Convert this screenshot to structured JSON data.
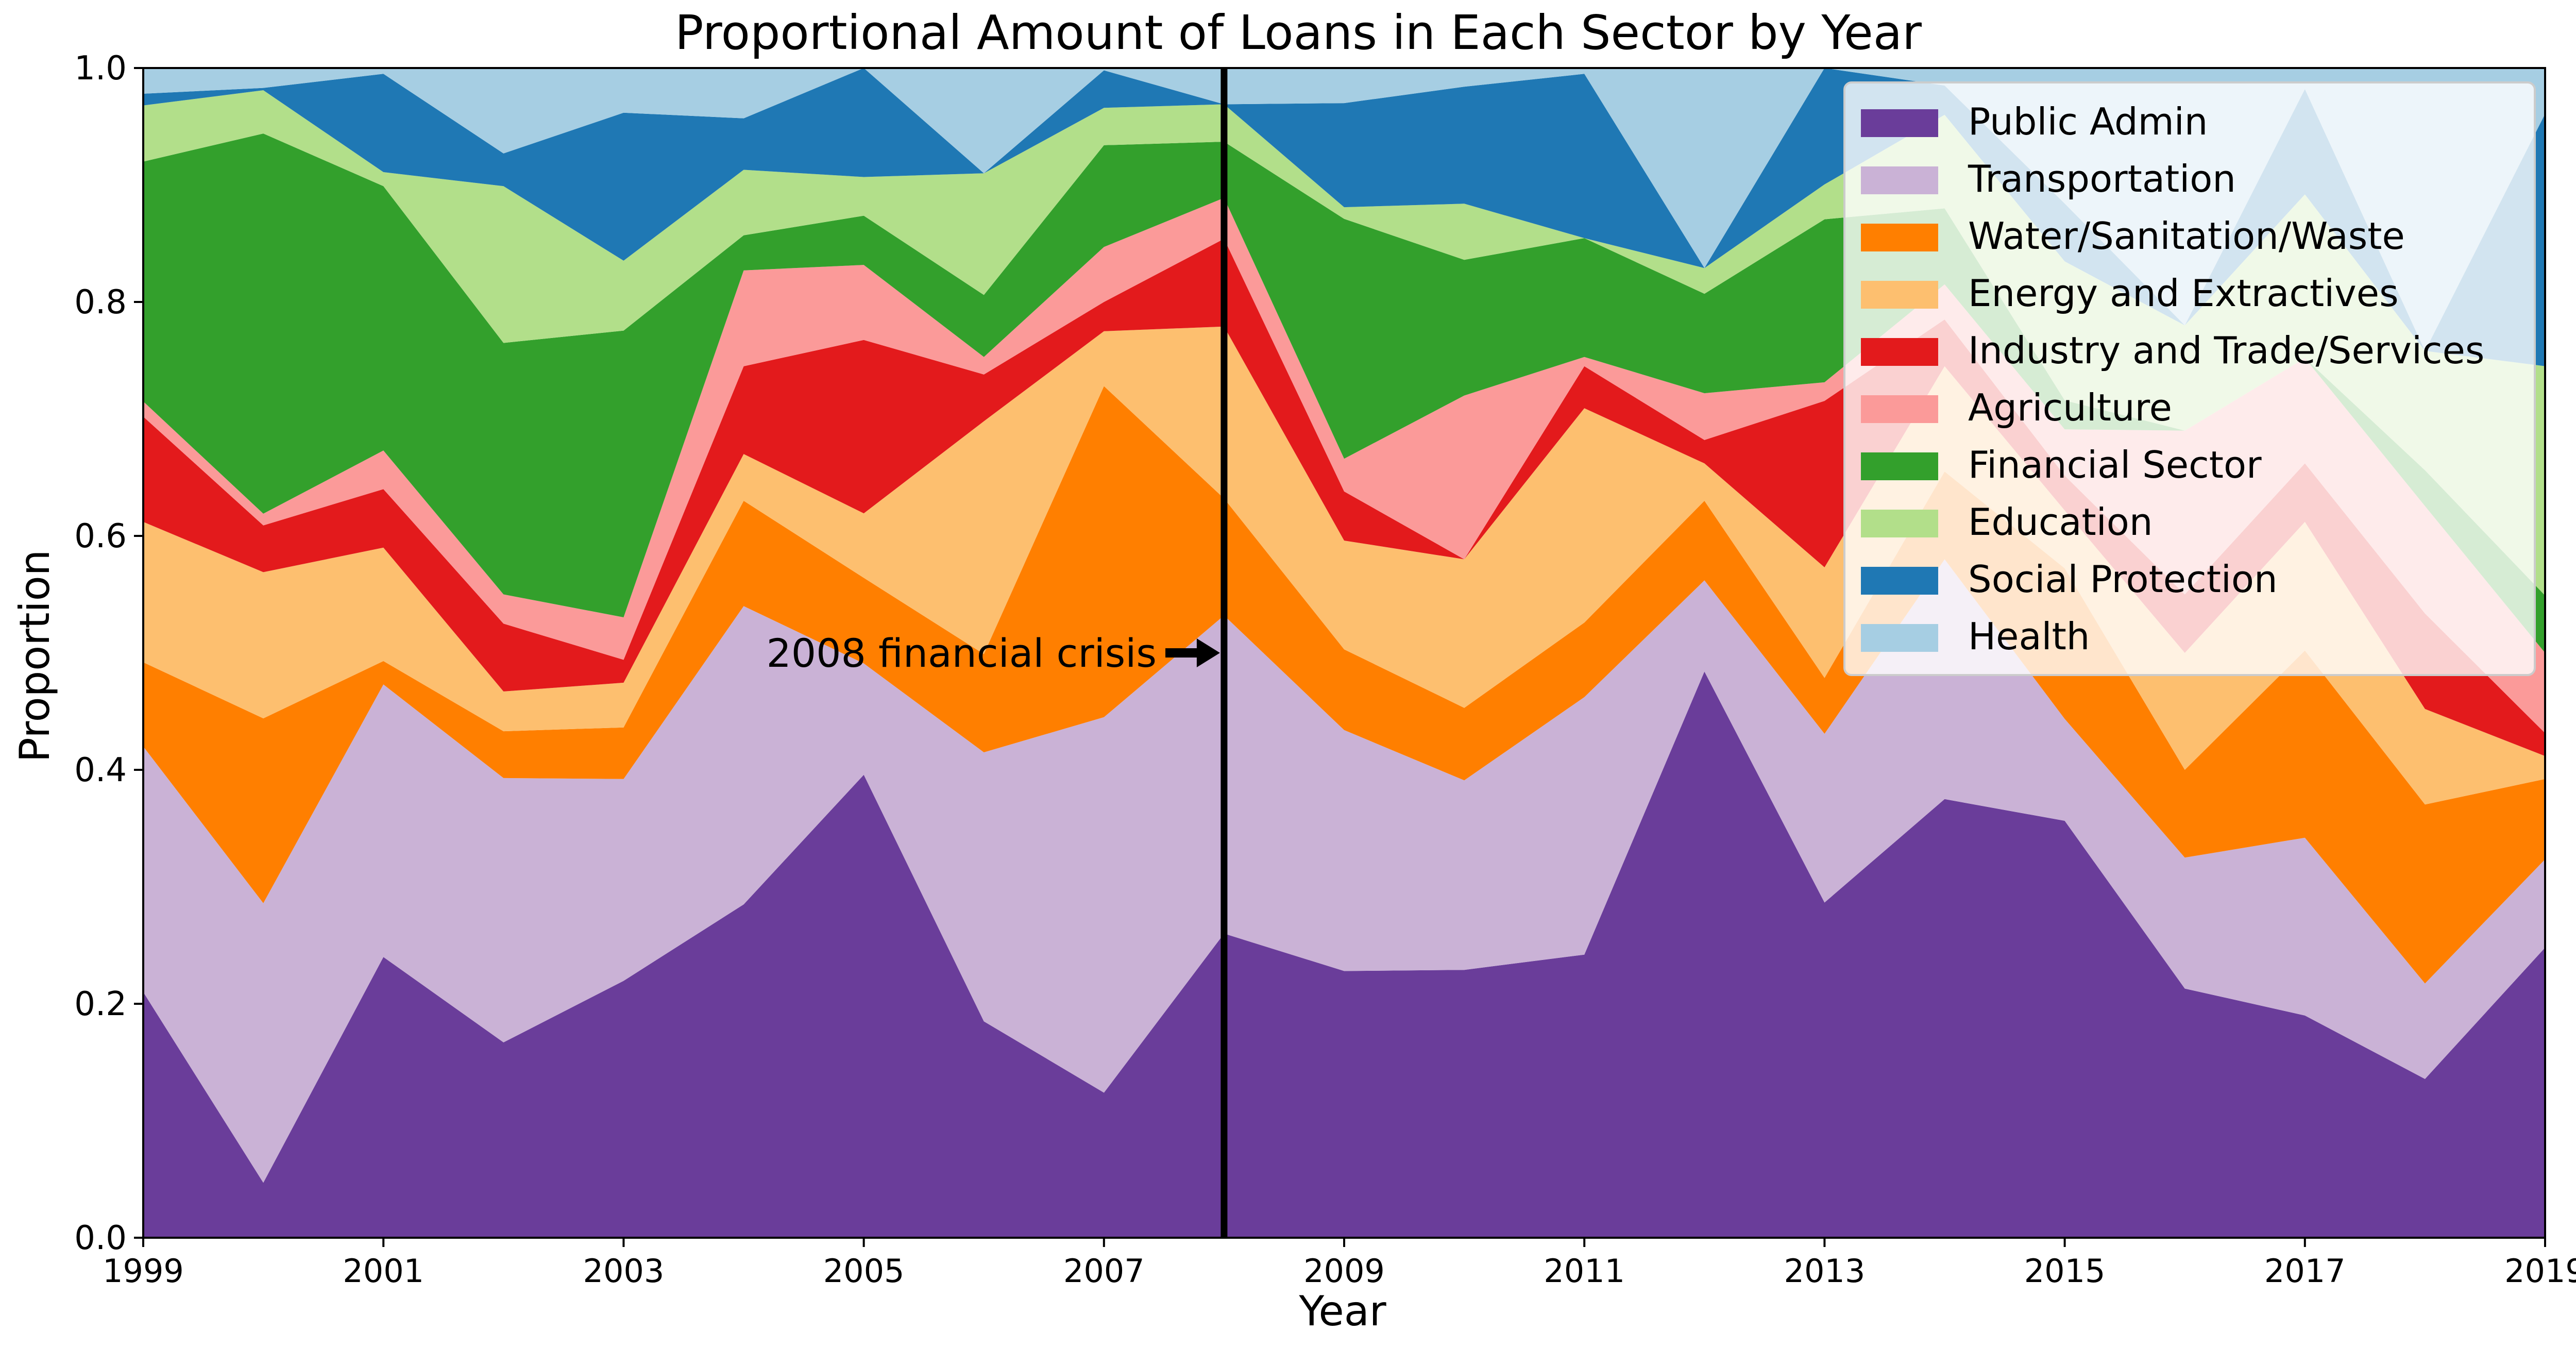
{
  "chart_data": {
    "type": "area",
    "stacked": true,
    "normalized": true,
    "title": "Proportional Amount of Loans in Each Sector by Year",
    "xlabel": "Year",
    "ylabel": "Proportion",
    "xlim": [
      1999,
      2019
    ],
    "ylim": [
      0,
      1
    ],
    "x": [
      1999,
      2000,
      2001,
      2002,
      2003,
      2004,
      2005,
      2006,
      2007,
      2008,
      2009,
      2010,
      2011,
      2012,
      2013,
      2014,
      2015,
      2016,
      2017,
      2018,
      2019
    ],
    "x_ticks": [
      "1999",
      "2001",
      "2003",
      "2005",
      "2007",
      "2009",
      "2011",
      "2013",
      "2015",
      "2017",
      "2019"
    ],
    "y_ticks": [
      "0.0",
      "0.2",
      "0.4",
      "0.6",
      "0.8",
      "1.0"
    ],
    "legend_position": "top-right",
    "grid": false,
    "series": [
      {
        "name": "Public Admin",
        "color": "#6a3d9a",
        "values": [
          0.21,
          0.047,
          0.24,
          0.167,
          0.224,
          0.285,
          0.395,
          0.185,
          0.124,
          0.26,
          0.228,
          0.229,
          0.243,
          0.484,
          0.288,
          0.375,
          0.36,
          0.213,
          0.19,
          0.133,
          0.253
        ]
      },
      {
        "name": "Transportation",
        "color": "#cab2d6",
        "values": [
          0.21,
          0.239,
          0.233,
          0.226,
          0.176,
          0.255,
          0.095,
          0.23,
          0.321,
          0.272,
          0.206,
          0.162,
          0.221,
          0.078,
          0.145,
          0.205,
          0.088,
          0.112,
          0.152,
          0.08,
          0.077
        ]
      },
      {
        "name": "Water/Sanitation/Waste",
        "color": "#ff7f00",
        "values": [
          0.072,
          0.158,
          0.02,
          0.04,
          0.045,
          0.09,
          0.073,
          0.084,
          0.283,
          0.1,
          0.069,
          0.062,
          0.064,
          0.068,
          0.048,
          0.075,
          0.13,
          0.075,
          0.16,
          0.15,
          0.07
        ]
      },
      {
        "name": "Energy and Extractives",
        "color": "#fdbf6f",
        "values": [
          0.12,
          0.125,
          0.097,
          0.034,
          0.039,
          0.04,
          0.055,
          0.199,
          0.047,
          0.147,
          0.093,
          0.127,
          0.184,
          0.032,
          0.095,
          0.09,
          0.05,
          0.1,
          0.11,
          0.08,
          0.02
        ]
      },
      {
        "name": "Industry and Trade/Services",
        "color": "#e31a1c",
        "values": [
          0.09,
          0.04,
          0.05,
          0.058,
          0.02,
          0.075,
          0.148,
          0.04,
          0.025,
          0.075,
          0.042,
          0.0,
          0.036,
          0.02,
          0.143,
          0.04,
          0.03,
          0.05,
          0.05,
          0.08,
          0.02
        ]
      },
      {
        "name": "Agriculture",
        "color": "#fb9a99",
        "values": [
          0.013,
          0.01,
          0.033,
          0.025,
          0.037,
          0.082,
          0.064,
          0.015,
          0.047,
          0.035,
          0.028,
          0.14,
          0.008,
          0.04,
          0.016,
          0.03,
          0.04,
          0.14,
          0.09,
          0.09,
          0.07
        ]
      },
      {
        "name": "Financial Sector",
        "color": "#33a02c",
        "values": [
          0.205,
          0.325,
          0.226,
          0.215,
          0.25,
          0.03,
          0.042,
          0.053,
          0.087,
          0.048,
          0.205,
          0.116,
          0.102,
          0.085,
          0.14,
          0.065,
          0.025,
          0.0,
          0.0,
          0.03,
          0.05
        ]
      },
      {
        "name": "Education",
        "color": "#b2df8a",
        "values": [
          0.048,
          0.037,
          0.012,
          0.134,
          0.061,
          0.056,
          0.033,
          0.104,
          0.032,
          0.032,
          0.01,
          0.048,
          0.0,
          0.022,
          0.03,
          0.08,
          0.12,
          0.09,
          0.14,
          0.1,
          0.2
        ]
      },
      {
        "name": "Social Protection",
        "color": "#1f78b4",
        "values": [
          0.01,
          0.002,
          0.084,
          0.028,
          0.129,
          0.044,
          0.093,
          0.0,
          0.032,
          0.0,
          0.089,
          0.1,
          0.141,
          0.0,
          0.1,
          0.025,
          0.05,
          0.0,
          0.09,
          0.0,
          0.22
        ]
      },
      {
        "name": "Health",
        "color": "#a6cee3",
        "values": [
          0.022,
          0.017,
          0.005,
          0.073,
          0.039,
          0.043,
          0.0,
          0.09,
          0.002,
          0.031,
          0.03,
          0.016,
          0.005,
          0.171,
          0.0,
          0.015,
          0.117,
          0.22,
          0.018,
          0.237,
          0.04
        ]
      }
    ],
    "annotations": [
      {
        "text": "2008 financial crisis",
        "x": 2008,
        "y": 0.5,
        "arrow": true
      }
    ],
    "vertical_lines": [
      2008
    ]
  }
}
